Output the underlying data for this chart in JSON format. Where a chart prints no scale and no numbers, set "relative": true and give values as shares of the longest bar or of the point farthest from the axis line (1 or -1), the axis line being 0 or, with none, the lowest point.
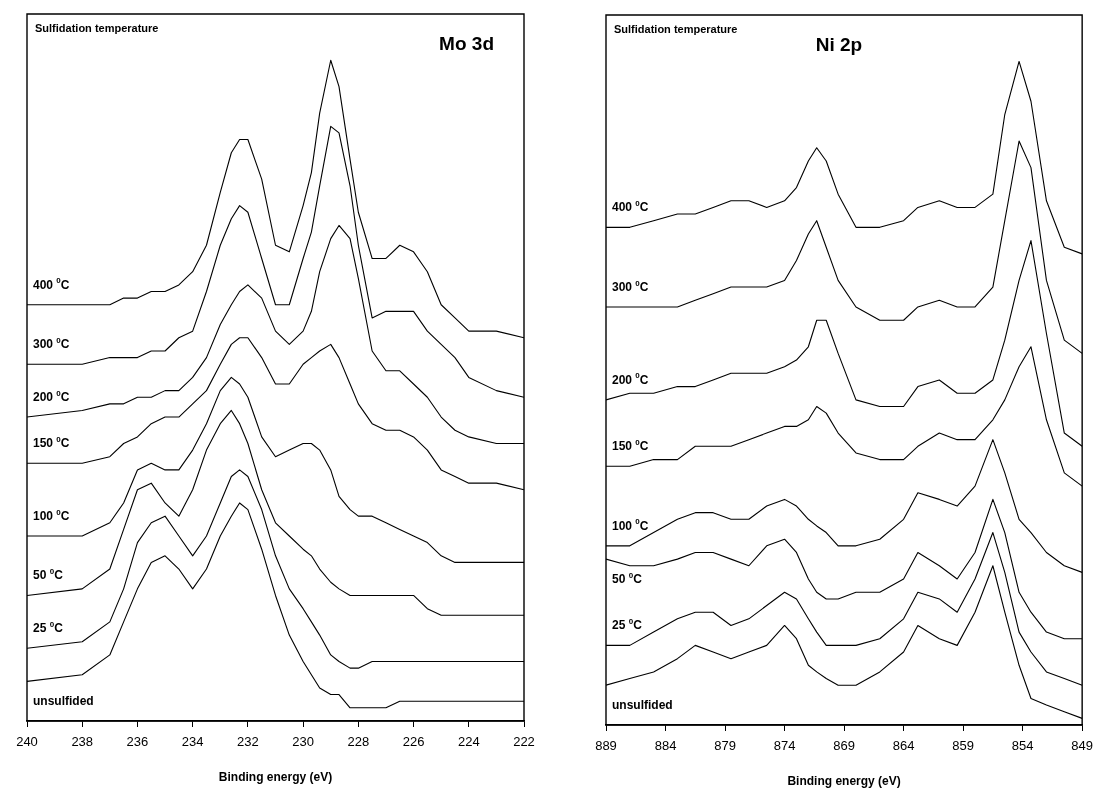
{
  "chart_data": [
    {
      "type": "line",
      "relative": true,
      "title": "Mo 3d",
      "legend_title": "Sulfidation temperature",
      "xlabel": "Binding energy (eV)",
      "marker": "none",
      "xlim": [
        240,
        222
      ],
      "xticks": [
        240,
        238,
        236,
        234,
        232,
        230,
        228,
        226,
        224,
        222
      ],
      "x": [
        240,
        238,
        237,
        236.5,
        236,
        235.5,
        235,
        234.5,
        234,
        233.5,
        233,
        232.6,
        232.3,
        232,
        231.5,
        231,
        230.5,
        230,
        229.7,
        229.4,
        229,
        228.7,
        228.3,
        228,
        227.5,
        227,
        226.5,
        226,
        225.5,
        225,
        224.5,
        224,
        223,
        222
      ],
      "series": [
        {
          "name": "400 $^{0}$C",
          "color": "#000000",
          "values": [
            0.63,
            0.63,
            0.63,
            0.64,
            0.64,
            0.65,
            0.65,
            0.66,
            0.68,
            0.72,
            0.8,
            0.86,
            0.88,
            0.88,
            0.82,
            0.72,
            0.71,
            0.78,
            0.83,
            0.92,
            1,
            0.96,
            0.85,
            0.77,
            0.7,
            0.7,
            0.72,
            0.71,
            0.68,
            0.63,
            0.61,
            0.59,
            0.59,
            0.58
          ]
        },
        {
          "name": "300 $^{0}$C",
          "color": "#000000",
          "values": [
            0.54,
            0.54,
            0.55,
            0.55,
            0.55,
            0.56,
            0.56,
            0.58,
            0.59,
            0.65,
            0.72,
            0.76,
            0.78,
            0.77,
            0.7,
            0.63,
            0.63,
            0.7,
            0.74,
            0.81,
            0.9,
            0.89,
            0.81,
            0.72,
            0.61,
            0.62,
            0.62,
            0.62,
            0.59,
            0.57,
            0.55,
            0.52,
            0.5,
            0.49
          ]
        },
        {
          "name": "200 $^{0}$C",
          "color": "#000000",
          "values": [
            0.46,
            0.47,
            0.48,
            0.48,
            0.49,
            0.49,
            0.5,
            0.5,
            0.52,
            0.55,
            0.6,
            0.63,
            0.65,
            0.66,
            0.64,
            0.59,
            0.57,
            0.59,
            0.62,
            0.68,
            0.73,
            0.75,
            0.73,
            0.67,
            0.56,
            0.53,
            0.53,
            0.51,
            0.49,
            0.46,
            0.44,
            0.43,
            0.42,
            0.42
          ]
        },
        {
          "name": "150 $^{0}$C",
          "color": "#000000",
          "values": [
            0.39,
            0.39,
            0.4,
            0.42,
            0.43,
            0.45,
            0.46,
            0.46,
            0.48,
            0.5,
            0.54,
            0.57,
            0.58,
            0.58,
            0.55,
            0.51,
            0.51,
            0.54,
            0.55,
            0.56,
            0.57,
            0.55,
            0.51,
            0.48,
            0.45,
            0.44,
            0.44,
            0.43,
            0.41,
            0.38,
            0.37,
            0.36,
            0.36,
            0.35
          ]
        },
        {
          "name": "100 $^{0}$C",
          "color": "#000000",
          "values": [
            0.28,
            0.28,
            0.3,
            0.33,
            0.38,
            0.39,
            0.38,
            0.38,
            0.41,
            0.45,
            0.5,
            0.52,
            0.51,
            0.49,
            0.43,
            0.4,
            0.41,
            0.42,
            0.42,
            0.41,
            0.38,
            0.34,
            0.32,
            0.31,
            0.31,
            0.3,
            0.29,
            0.28,
            0.27,
            0.25,
            0.24,
            0.24,
            0.24,
            0.24
          ]
        },
        {
          "name": "50 $^{0}$C",
          "color": "#000000",
          "values": [
            0.19,
            0.2,
            0.23,
            0.29,
            0.35,
            0.36,
            0.33,
            0.31,
            0.35,
            0.41,
            0.45,
            0.47,
            0.45,
            0.42,
            0.35,
            0.3,
            0.28,
            0.26,
            0.25,
            0.23,
            0.21,
            0.2,
            0.19,
            0.19,
            0.19,
            0.19,
            0.19,
            0.19,
            0.17,
            0.16,
            0.16,
            0.16,
            0.16,
            0.16
          ]
        },
        {
          "name": "25 $^{0}$C",
          "color": "#000000",
          "values": [
            0.11,
            0.12,
            0.15,
            0.2,
            0.27,
            0.3,
            0.31,
            0.28,
            0.25,
            0.28,
            0.33,
            0.37,
            0.38,
            0.37,
            0.32,
            0.25,
            0.2,
            0.17,
            0.15,
            0.13,
            0.1,
            0.09,
            0.08,
            0.08,
            0.09,
            0.09,
            0.09,
            0.09,
            0.09,
            0.09,
            0.09,
            0.09,
            0.09,
            0.09
          ]
        },
        {
          "name": "unsulfided",
          "color": "#000000",
          "values": [
            0.06,
            0.07,
            0.1,
            0.15,
            0.2,
            0.24,
            0.25,
            0.23,
            0.2,
            0.23,
            0.28,
            0.31,
            0.33,
            0.32,
            0.26,
            0.19,
            0.13,
            0.09,
            0.07,
            0.05,
            0.04,
            0.04,
            0.02,
            0.02,
            0.02,
            0.02,
            0.03,
            0.03,
            0.03,
            0.03,
            0.03,
            0.03,
            0.03,
            0.03
          ]
        }
      ]
    },
    {
      "type": "line",
      "relative": true,
      "title": "Ni 2p",
      "legend_title": "Sulfidation temperature",
      "xlabel": "Binding energy (eV)",
      "marker": "none",
      "xlim": [
        889,
        849
      ],
      "xticks": [
        889,
        884,
        879,
        874,
        869,
        864,
        859,
        854,
        849
      ],
      "x": [
        889,
        887,
        885,
        883,
        881.5,
        880,
        878.5,
        877,
        875.5,
        874,
        873,
        872,
        871.3,
        870.5,
        869.5,
        868,
        866,
        864,
        862.8,
        861,
        859.5,
        858,
        856.5,
        855.5,
        854.3,
        853.3,
        852,
        850.5,
        849
      ],
      "series": [
        {
          "name": "400 $^{0}$C",
          "color": "#000000",
          "values": [
            0.75,
            0.75,
            0.76,
            0.77,
            0.77,
            0.78,
            0.79,
            0.79,
            0.78,
            0.79,
            0.81,
            0.85,
            0.87,
            0.85,
            0.8,
            0.75,
            0.75,
            0.76,
            0.78,
            0.79,
            0.78,
            0.78,
            0.8,
            0.92,
            1,
            0.94,
            0.79,
            0.72,
            0.71
          ]
        },
        {
          "name": "300 $^{0}$C",
          "color": "#000000",
          "values": [
            0.63,
            0.63,
            0.63,
            0.63,
            0.64,
            0.65,
            0.66,
            0.66,
            0.66,
            0.67,
            0.7,
            0.74,
            0.76,
            0.72,
            0.67,
            0.63,
            0.61,
            0.61,
            0.63,
            0.64,
            0.63,
            0.63,
            0.66,
            0.76,
            0.88,
            0.84,
            0.67,
            0.58,
            0.56
          ]
        },
        {
          "name": "200 $^{0}$C",
          "color": "#000000",
          "values": [
            0.49,
            0.5,
            0.5,
            0.51,
            0.51,
            0.52,
            0.53,
            0.53,
            0.53,
            0.54,
            0.55,
            0.57,
            0.61,
            0.61,
            0.56,
            0.49,
            0.48,
            0.48,
            0.51,
            0.52,
            0.5,
            0.5,
            0.52,
            0.58,
            0.67,
            0.73,
            0.59,
            0.44,
            0.42
          ]
        },
        {
          "name": "150 $^{0}$C",
          "color": "#000000",
          "values": [
            0.39,
            0.39,
            0.4,
            0.4,
            0.42,
            0.42,
            0.42,
            0.43,
            0.44,
            0.45,
            0.45,
            0.46,
            0.48,
            0.47,
            0.44,
            0.41,
            0.4,
            0.4,
            0.42,
            0.44,
            0.43,
            0.43,
            0.46,
            0.49,
            0.54,
            0.57,
            0.46,
            0.38,
            0.36
          ]
        },
        {
          "name": "100 $^{0}$C",
          "color": "#000000",
          "values": [
            0.27,
            0.27,
            0.29,
            0.31,
            0.32,
            0.32,
            0.31,
            0.31,
            0.33,
            0.34,
            0.33,
            0.31,
            0.3,
            0.29,
            0.27,
            0.27,
            0.28,
            0.31,
            0.35,
            0.34,
            0.33,
            0.36,
            0.43,
            0.38,
            0.31,
            0.29,
            0.26,
            0.24,
            0.23
          ]
        },
        {
          "name": "50 $^{0}$C",
          "color": "#000000",
          "values": [
            0.25,
            0.24,
            0.24,
            0.25,
            0.26,
            0.26,
            0.25,
            0.24,
            0.27,
            0.28,
            0.26,
            0.22,
            0.2,
            0.19,
            0.19,
            0.2,
            0.2,
            0.22,
            0.26,
            0.24,
            0.22,
            0.26,
            0.34,
            0.29,
            0.2,
            0.17,
            0.14,
            0.13,
            0.13
          ]
        },
        {
          "name": "25 $^{0}$C",
          "color": "#000000",
          "values": [
            0.12,
            0.12,
            0.14,
            0.16,
            0.17,
            0.17,
            0.15,
            0.16,
            0.18,
            0.2,
            0.19,
            0.16,
            0.14,
            0.12,
            0.12,
            0.12,
            0.13,
            0.16,
            0.2,
            0.19,
            0.17,
            0.22,
            0.29,
            0.23,
            0.14,
            0.11,
            0.08,
            0.07,
            0.06
          ]
        },
        {
          "name": "unsulfided",
          "color": "#000000",
          "values": [
            0.06,
            0.07,
            0.08,
            0.1,
            0.12,
            0.11,
            0.1,
            0.11,
            0.12,
            0.15,
            0.13,
            0.09,
            0.08,
            0.07,
            0.06,
            0.06,
            0.08,
            0.11,
            0.15,
            0.13,
            0.12,
            0.17,
            0.24,
            0.17,
            0.09,
            0.04,
            0.03,
            0.02,
            0.01
          ]
        }
      ]
    }
  ]
}
